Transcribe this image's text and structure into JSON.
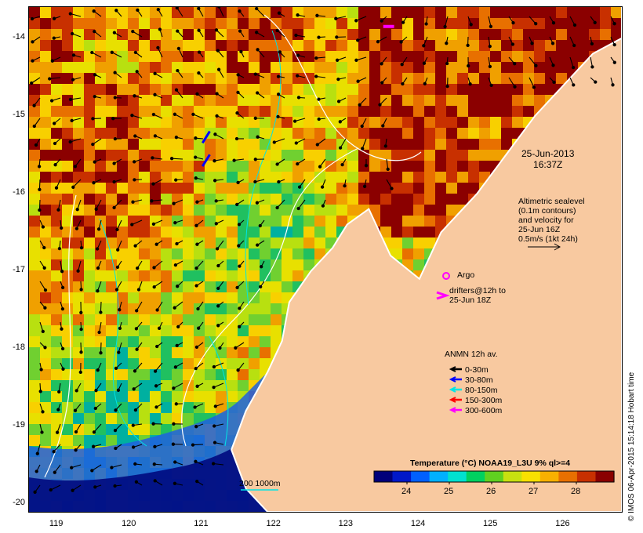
{
  "map": {
    "x_ticks": [
      "119",
      "120",
      "121",
      "122",
      "123",
      "124",
      "125",
      "126"
    ],
    "y_ticks": [
      "-14",
      "-15",
      "-16",
      "-17",
      "-18",
      "-19",
      "-20"
    ],
    "lon_range": [
      118.6,
      126.8
    ],
    "lat_range": [
      -20.1,
      -13.6
    ]
  },
  "annotations": {
    "date_line1": "25-Jun-2013",
    "date_line2": "16:37Z",
    "alt_line1": "Altimetric sealevel",
    "alt_line2": "(0.1m contours)",
    "alt_line3": "and velocity for",
    "alt_line4": "25-Jun 16Z",
    "alt_line5": "0.5m/s (1kt 24h)",
    "argo": "Argo",
    "drifters_line1": "drifters@12h to",
    "drifters_line2": "25-Jun 18Z",
    "depth_scale": "200  1000m"
  },
  "anmn_legend": {
    "title": "ANMN 12h av.",
    "items": [
      {
        "label": "0-30m",
        "color": "#000000"
      },
      {
        "label": "30-80m",
        "color": "#0000ff"
      },
      {
        "label": "80-150m",
        "color": "#00e5e5"
      },
      {
        "label": "150-300m",
        "color": "#ff0000"
      },
      {
        "label": "300-600m",
        "color": "#ff00ff"
      }
    ]
  },
  "colorbar": {
    "title": "Temperature (°C) NOAA19_L3U 9% ql>=4",
    "ticks": [
      "24",
      "25",
      "26",
      "27",
      "28"
    ],
    "colors": [
      "#00007a",
      "#0018c8",
      "#0060ff",
      "#00b0ff",
      "#00e0d0",
      "#00d060",
      "#60d020",
      "#c8e010",
      "#f8e000",
      "#f8b000",
      "#e87000",
      "#c83000",
      "#8a0000"
    ]
  },
  "credit": "© IMOS 06-Apr-2015 15:14:18 Hobart time",
  "colors": {
    "land": "#f8c9a0",
    "coast": "#ffffff",
    "argo": "#ff00ff"
  }
}
